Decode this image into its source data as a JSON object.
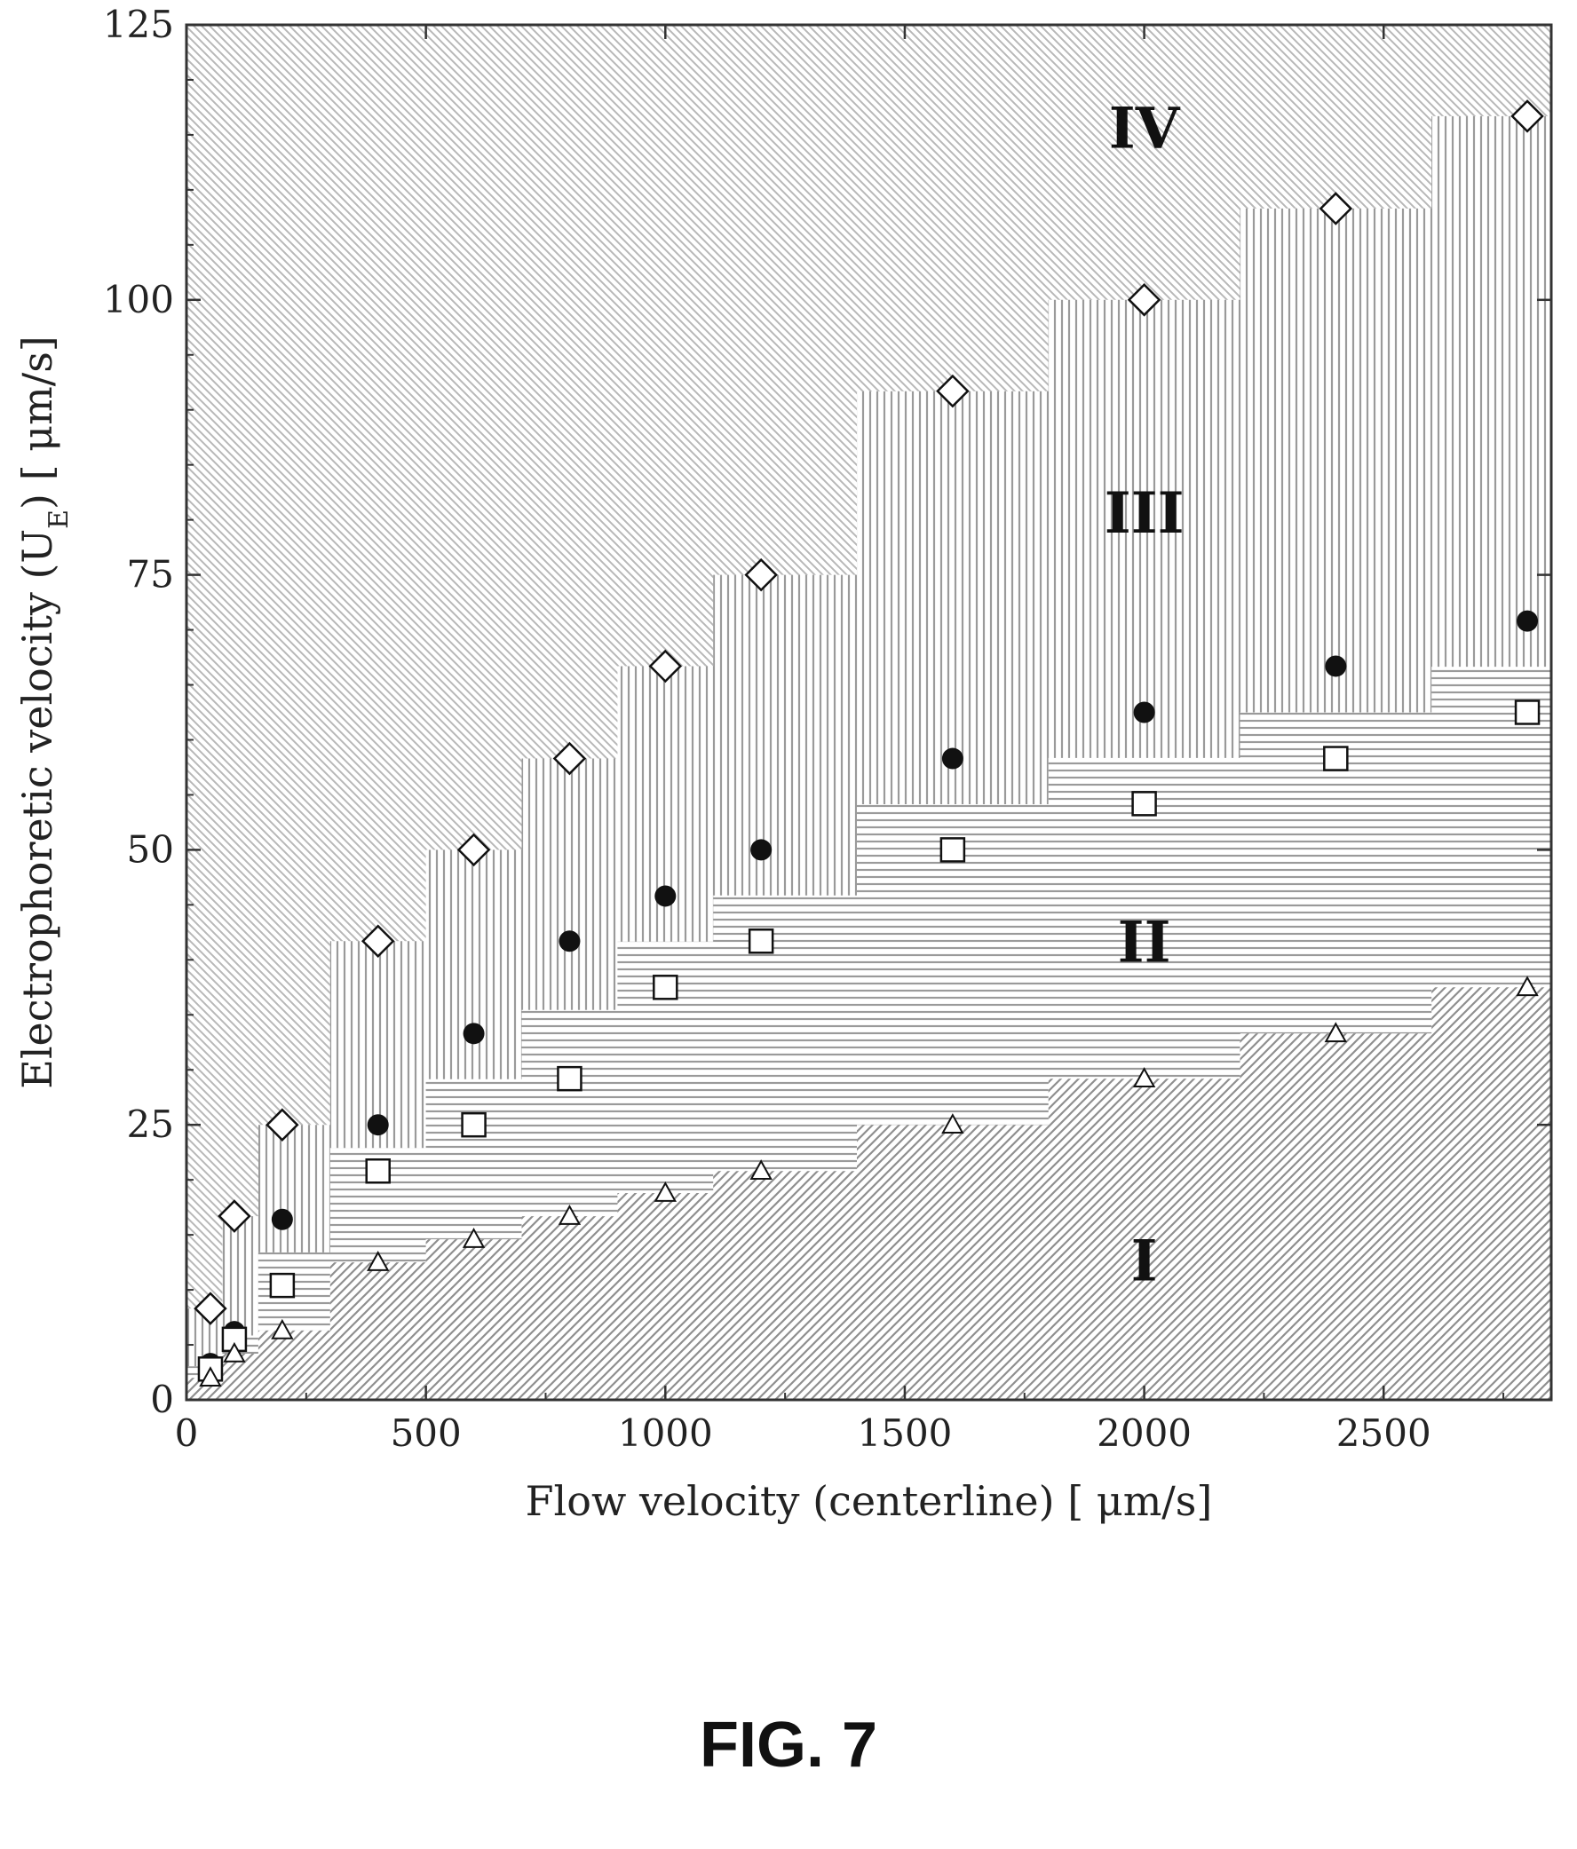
{
  "figure_label": "FIG. 7",
  "chart_data": {
    "type": "scatter",
    "title": "",
    "xlabel": "Flow velocity (centerline) [ μm/s]",
    "ylabel": "Electrophoretic velocity (U_E) [ μm/s]",
    "xlim": [
      0,
      2850
    ],
    "ylim": [
      0,
      125
    ],
    "xticks": [
      0,
      500,
      1000,
      1500,
      2000,
      2500
    ],
    "yticks": [
      0,
      25,
      50,
      75,
      100,
      125
    ],
    "grid": false,
    "legend": "none",
    "regions": [
      {
        "label": "I",
        "x": 2000,
        "y": 11
      },
      {
        "label": "II",
        "x": 2000,
        "y": 40
      },
      {
        "label": "III",
        "x": 2000,
        "y": 79
      },
      {
        "label": "IV",
        "x": 2000,
        "y": 114
      }
    ],
    "series": [
      {
        "marker": "diamond-open",
        "x": [
          50,
          100,
          200,
          400,
          600,
          800,
          1000,
          1200,
          1600,
          2000,
          2400,
          2800
        ],
        "y": [
          8.3,
          16.7,
          25,
          41.7,
          50,
          58.3,
          66.7,
          75,
          91.7,
          100,
          108.3,
          116.7
        ]
      },
      {
        "marker": "circle-filled",
        "x": [
          50,
          100,
          200,
          400,
          600,
          800,
          1000,
          1200,
          1600,
          2000,
          2400,
          2800
        ],
        "y": [
          3.3,
          6.2,
          16.4,
          25,
          33.3,
          41.7,
          45.8,
          50,
          58.3,
          62.5,
          66.7,
          70.8
        ]
      },
      {
        "marker": "square-open",
        "x": [
          50,
          100,
          200,
          400,
          600,
          800,
          1000,
          1200,
          1600,
          2000,
          2400,
          2800
        ],
        "y": [
          2.8,
          5.5,
          10.4,
          20.8,
          25,
          29.2,
          37.5,
          41.7,
          50,
          54.2,
          58.3,
          62.5
        ]
      },
      {
        "marker": "triangle-open",
        "x": [
          50,
          100,
          200,
          400,
          600,
          800,
          1000,
          1200,
          1600,
          2000,
          2400,
          2800
        ],
        "y": [
          2,
          4.2,
          6.3,
          12.5,
          14.6,
          16.7,
          18.8,
          20.8,
          25,
          29.2,
          33.3,
          37.5
        ]
      }
    ]
  }
}
